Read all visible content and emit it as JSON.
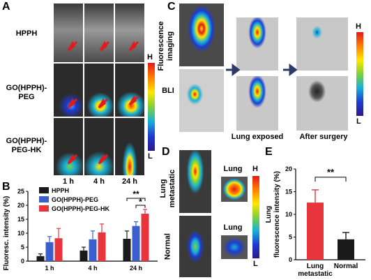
{
  "panelA": {
    "letter": "A",
    "rows": [
      "HPPH",
      "GO(HPPH)-\nPEG",
      "GO(HPPH)-\nPEG-HK"
    ],
    "cols": [
      "1 h",
      "4 h",
      "24 h"
    ],
    "colorbar": {
      "high": "H",
      "low": "L"
    }
  },
  "panelB": {
    "letter": "B",
    "chart_data": {
      "type": "bar",
      "categories": [
        "1 h",
        "4 h",
        "24 h"
      ],
      "ylabel": "Fluoresc. intensity (%)",
      "ylim": [
        0,
        25
      ],
      "yticks": [
        0,
        5,
        10,
        15,
        20,
        25
      ],
      "series": [
        {
          "name": "HPPH",
          "color": "#1a1a1a",
          "values": [
            1.8,
            3.8,
            8.0
          ],
          "errors": [
            0.8,
            1.2,
            2.8
          ]
        },
        {
          "name": "GO(HPPH)-PEG",
          "color": "#3a5fcd",
          "values": [
            6.8,
            7.8,
            12.6
          ],
          "errors": [
            2.0,
            3.0,
            1.5
          ]
        },
        {
          "name": "GO(HPPH)-PEG-HK",
          "color": "#e8343c",
          "values": [
            8.2,
            10.3,
            17.0
          ],
          "errors": [
            3.5,
            3.0,
            1.5
          ]
        }
      ],
      "annotations": [
        "**",
        "*"
      ]
    }
  },
  "panelC": {
    "letter": "C",
    "row1_label": "Fluorescence\nimaging",
    "row2_label": "BLI",
    "caption_mid": "Lung exposed",
    "caption_right": "After surgery",
    "colorbar": {
      "high": "H",
      "low": "L"
    }
  },
  "panelD": {
    "letter": "D",
    "row1_label": "Lung\nmetastatic",
    "row2_label": "Normal",
    "organ_label1": "Lung",
    "organ_label2": "Lung",
    "colorbar": {
      "high": "H",
      "low": "L"
    }
  },
  "panelE": {
    "letter": "E",
    "chart_data": {
      "type": "bar",
      "categories": [
        "Lung\nmetastatic",
        "Normal"
      ],
      "ylabel": "Lung\nfluorescence intensity (%)",
      "ylim": [
        0,
        20
      ],
      "yticks": [
        0,
        5,
        10,
        15,
        20
      ],
      "values": [
        12.6,
        4.5
      ],
      "errors": [
        2.8,
        1.5
      ],
      "colors": [
        "#e8343c",
        "#1a1a1a"
      ],
      "annotations": [
        "**"
      ]
    }
  }
}
